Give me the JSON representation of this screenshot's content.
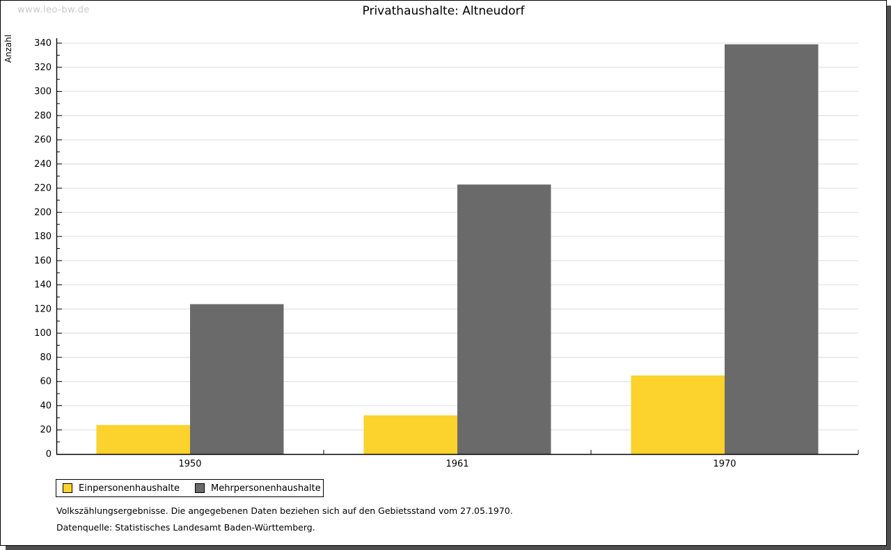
{
  "page": {
    "watermark": "www.leo-bw.de",
    "title": "Privathaushalte: Altneudorf",
    "footnote1": "Volkszählungsergebnisse. Die angegebenen Daten beziehen sich auf den Gebietsstand vom 27.05.1970.",
    "footnote2": "Datenquelle: Statistisches Landesamt Baden-Württemberg."
  },
  "colors": {
    "series1": "#FCD22C",
    "series2": "#6A6A6A",
    "gridline": "#E3E3E3",
    "axis": "#000000",
    "watermark": "#C9C9C9",
    "shadow": "#4E4E4E"
  },
  "chart_data": {
    "type": "bar",
    "title": "Privathaushalte: Altneudorf",
    "xlabel": "",
    "ylabel": "Anzahl",
    "categories": [
      "1950",
      "1961",
      "1970"
    ],
    "series": [
      {
        "name": "Einpersonenhaushalte",
        "color": "#FCD22C",
        "values": [
          24,
          32,
          65
        ]
      },
      {
        "name": "Mehrpersonenhaushalte",
        "color": "#6A6A6A",
        "values": [
          124,
          223,
          339
        ]
      }
    ],
    "ylim": [
      0,
      340
    ],
    "ytick_step": 20,
    "yminor_step": 10,
    "grid": true,
    "legend_position": "bottom-left"
  }
}
